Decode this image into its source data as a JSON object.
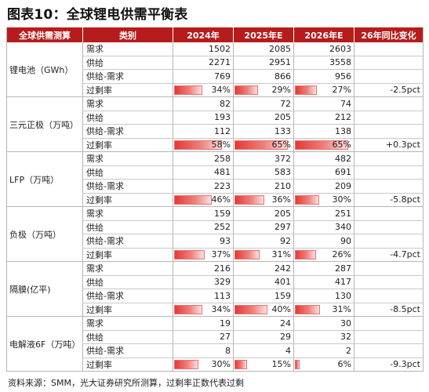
{
  "title": "图表10：全球锂电供需平衡表",
  "headers": [
    "全球供需测算",
    "类别",
    "2024年",
    "2025年E",
    "2026年E",
    "26年同比变化"
  ],
  "row_labels": [
    "需求",
    "供给",
    "供给-需求",
    "过剩率"
  ],
  "groups": [
    {
      "name": "锂电池（GWh）",
      "demand": [
        "1502",
        "2085",
        "2603"
      ],
      "supply": [
        "2271",
        "2951",
        "3558"
      ],
      "gap": [
        "769",
        "866",
        "956"
      ],
      "rate": [
        "34%",
        "29%",
        "27%"
      ],
      "change": "-2.5pct"
    },
    {
      "name": "三元正极（万吨）",
      "demand": [
        "82",
        "72",
        "74"
      ],
      "supply": [
        "193",
        "205",
        "212"
      ],
      "gap": [
        "112",
        "133",
        "138"
      ],
      "rate": [
        "58%",
        "65%",
        "65%"
      ],
      "change": "+0.3pct"
    },
    {
      "name": "LFP（万吨）",
      "demand": [
        "258",
        "372",
        "482"
      ],
      "supply": [
        "481",
        "583",
        "691"
      ],
      "gap": [
        "223",
        "210",
        "209"
      ],
      "rate": [
        "46%",
        "36%",
        "30%"
      ],
      "change": "-5.8pct"
    },
    {
      "name": "负极（万吨）",
      "demand": [
        "159",
        "205",
        "251"
      ],
      "supply": [
        "252",
        "297",
        "340"
      ],
      "gap": [
        "93",
        "92",
        "90"
      ],
      "rate": [
        "37%",
        "31%",
        "26%"
      ],
      "change": "-4.7pct"
    },
    {
      "name": "隔膜(亿平)",
      "demand": [
        "216",
        "242",
        "287"
      ],
      "supply": [
        "329",
        "401",
        "417"
      ],
      "gap": [
        "113",
        "159",
        "130"
      ],
      "rate": [
        "34%",
        "40%",
        "31%"
      ],
      "change": "-8.5pct"
    },
    {
      "name": "电解液6F（万吨）",
      "demand": [
        "19",
        "24",
        "30"
      ],
      "supply": [
        "27",
        "29",
        "32"
      ],
      "gap": [
        "8",
        "4",
        "2"
      ],
      "rate": [
        "30%",
        "15%",
        "6%"
      ],
      "change": "-9.3pct"
    }
  ],
  "source": "资料来源：SMM，光大证券研究所测算，过剩率正数代表过剩",
  "bar_color": "#e53935",
  "header_color": "#b71c1c"
}
